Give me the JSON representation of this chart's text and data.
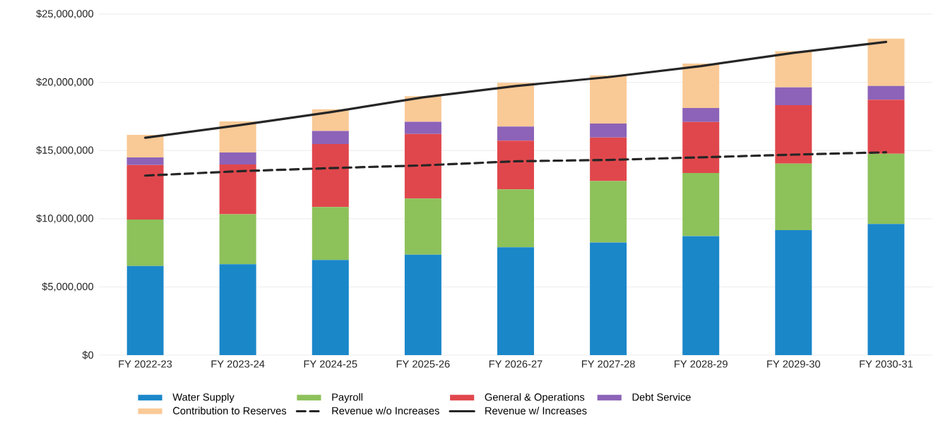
{
  "chart_data": {
    "type": "bar",
    "stacked": true,
    "grid": "y",
    "legend": "bottom",
    "categories": [
      "FY 2022-23",
      "FY 2023-24",
      "FY 2024-25",
      "FY 2025-26",
      "FY 2026-27",
      "FY 2027-28",
      "FY 2028-29",
      "FY 2029-30",
      "FY 2030-31"
    ],
    "ylim": [
      0,
      25000000
    ],
    "yticks": [
      {
        "value": 0,
        "label": "$0"
      },
      {
        "value": 5000000,
        "label": "$5,000,000"
      },
      {
        "value": 10000000,
        "label": "$10,000,000"
      },
      {
        "value": 15000000,
        "label": "$15,000,000"
      },
      {
        "value": 20000000,
        "label": "$20,000,000"
      },
      {
        "value": 25000000,
        "label": "$25,000,000"
      }
    ],
    "series": [
      {
        "name": "Water Supply",
        "color": "#1a87c9",
        "values": [
          6540000,
          6660000,
          6970000,
          7360000,
          7900000,
          8260000,
          8720000,
          9160000,
          9620000
        ]
      },
      {
        "name": "Payroll",
        "color": "#8dc15a",
        "values": [
          3400000,
          3670000,
          3890000,
          4120000,
          4250000,
          4500000,
          4640000,
          4880000,
          5150000
        ]
      },
      {
        "name": "General & Operations",
        "color": "#e0474c",
        "values": [
          3990000,
          3650000,
          4610000,
          4730000,
          3570000,
          3200000,
          3740000,
          4280000,
          3960000
        ]
      },
      {
        "name": "Debt Service",
        "color": "#8c63b8",
        "values": [
          560000,
          880000,
          960000,
          900000,
          1040000,
          1020000,
          1020000,
          1310000,
          1000000
        ]
      },
      {
        "name": "Contribution to Reserves",
        "color": "#f9c996",
        "values": [
          1660000,
          2270000,
          1600000,
          1870000,
          3210000,
          3530000,
          3260000,
          2650000,
          3470000
        ]
      },
      {
        "name": "Revenue w/o Increases",
        "type": "line",
        "line_style": "dashed",
        "marker": "none",
        "color": "#262626",
        "values": [
          13160000,
          13480000,
          13710000,
          13910000,
          14210000,
          14310000,
          14500000,
          14700000,
          14870000
        ]
      },
      {
        "name": "Revenue w/ Increases",
        "type": "line",
        "line_style": "solid",
        "marker": "none",
        "color": "#262626",
        "values": [
          15940000,
          16840000,
          17810000,
          18900000,
          19730000,
          20380000,
          21190000,
          22160000,
          22960000
        ]
      }
    ]
  }
}
